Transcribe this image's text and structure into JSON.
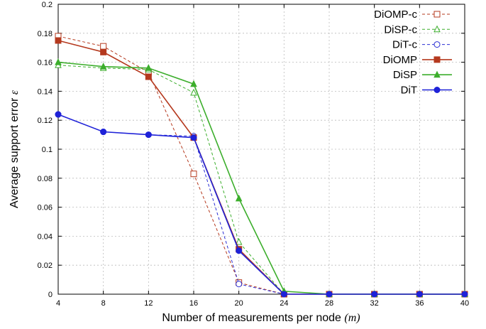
{
  "chart_data": {
    "type": "line",
    "xlabel": "Number of measurements per node",
    "xlabel_symbol": "(m)",
    "ylabel": "Average support error",
    "ylabel_symbol": "ε",
    "x": [
      4,
      8,
      12,
      16,
      20,
      24,
      28,
      32,
      36,
      40
    ],
    "xticks": [
      "4",
      "8",
      "12",
      "16",
      "20",
      "24",
      "28",
      "32",
      "36",
      "40"
    ],
    "yticks": [
      "0",
      "0.02",
      "0.04",
      "0.06",
      "0.08",
      "0.1",
      "0.12",
      "0.14",
      "0.16",
      "0.18",
      "0.2"
    ],
    "ylim": [
      0,
      0.2
    ],
    "grid": true,
    "legend_position": "top-right",
    "series": [
      {
        "name": "DiOMP-c",
        "values": [
          0.178,
          0.171,
          0.153,
          0.083,
          0.008,
          0.0,
          0.0,
          0.0,
          0.0,
          0.0
        ],
        "color": "#b5391e",
        "dashed": true,
        "marker": "square-open"
      },
      {
        "name": "DiSP-c",
        "values": [
          0.158,
          0.156,
          0.155,
          0.139,
          0.036,
          0.0,
          0.0,
          0.0,
          0.0,
          0.0
        ],
        "color": "#3cae2c",
        "dashed": true,
        "marker": "triangle-open"
      },
      {
        "name": "DiT-c",
        "values": [
          0.124,
          0.112,
          0.11,
          0.109,
          0.007,
          0.0,
          0.0,
          0.0,
          0.0,
          0.0
        ],
        "color": "#2a2ed4",
        "dashed": true,
        "marker": "circle-open"
      },
      {
        "name": "DiOMP",
        "values": [
          0.175,
          0.167,
          0.15,
          0.108,
          0.031,
          0.0,
          0.0,
          0.0,
          0.0,
          0.0
        ],
        "color": "#b5391e",
        "dashed": false,
        "marker": "square-filled"
      },
      {
        "name": "DiSP",
        "values": [
          0.16,
          0.157,
          0.156,
          0.145,
          0.066,
          0.002,
          0.0,
          0.0,
          0.0,
          0.0
        ],
        "color": "#3cae2c",
        "dashed": false,
        "marker": "triangle-filled"
      },
      {
        "name": "DiT",
        "values": [
          0.124,
          0.112,
          0.11,
          0.108,
          0.03,
          0.0,
          0.0,
          0.0,
          0.0,
          0.0
        ],
        "color": "#1f22d8",
        "dashed": false,
        "marker": "circle-filled"
      }
    ]
  }
}
